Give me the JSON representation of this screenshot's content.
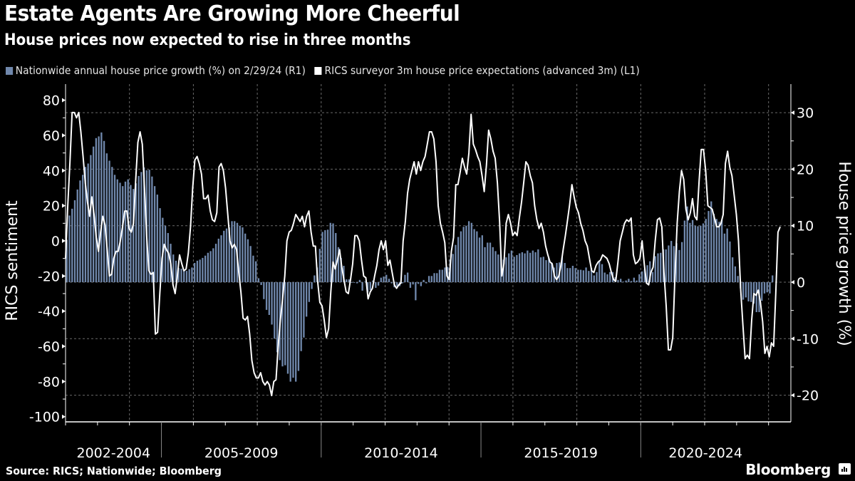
{
  "header": {
    "title": "Estate Agents Are Growing More Cheerful",
    "subtitle": "House prices now expected to rise in three months"
  },
  "footer": {
    "source": "Source: RICS; Nationwide; Bloomberg",
    "brand": "Bloomberg"
  },
  "colors": {
    "background": "#000000",
    "bars": "#7088ac",
    "line": "#ffffff",
    "grid": "#6a6a6a"
  },
  "chart_data": {
    "type": "bar+line",
    "title": "Estate Agents Are Growing More Cheerful",
    "subtitle": "House prices now expected to rise in three months",
    "legend_position": "top-left",
    "grid": true,
    "x_start": "2002-01",
    "x_range_years": [
      2002,
      2024.5
    ],
    "x_category_labels": [
      "2002-2004",
      "2005-2009",
      "2010-2014",
      "2015-2019",
      "2020-2024"
    ],
    "left_axis": {
      "label": "RICS sentiment",
      "ticks": [
        80,
        60,
        40,
        20,
        0,
        -20,
        -40,
        -60,
        -80,
        -100
      ],
      "range": [
        -104,
        87
      ]
    },
    "right_axis": {
      "label": "House price growth (%)",
      "ticks": [
        30,
        20,
        10,
        0,
        -10,
        -20
      ],
      "range": [
        -25,
        35
      ]
    },
    "series": [
      {
        "name": "Nationwide annual house price growth (%) on 2/29/24 (R1)",
        "type": "bar",
        "axis": "right",
        "frequency": "monthly",
        "start": "2002-01",
        "values": [
          7.5,
          11.8,
          13.0,
          14.5,
          16.4,
          18.0,
          19.0,
          20.4,
          21.0,
          22.5,
          24.0,
          25.5,
          25.8,
          26.5,
          25.0,
          22.8,
          21.5,
          20.4,
          19.0,
          18.2,
          17.6,
          17.0,
          17.8,
          18.2,
          17.2,
          16.5,
          17.5,
          18.8,
          19.5,
          20.3,
          19.8,
          19.9,
          18.7,
          17.0,
          15.5,
          13.1,
          11.4,
          10.0,
          8.7,
          6.8,
          4.9,
          3.8,
          2.5,
          2.4,
          2.2,
          2.0,
          2.3,
          2.6,
          3.4,
          3.8,
          4.0,
          4.3,
          4.7,
          5.2,
          5.5,
          6.0,
          6.8,
          7.7,
          8.3,
          9.1,
          9.5,
          9.7,
          10.8,
          10.8,
          10.5,
          10.0,
          9.7,
          8.6,
          7.6,
          6.4,
          4.7,
          3.7,
          0.7,
          -0.5,
          -3.0,
          -4.9,
          -5.8,
          -7.5,
          -10.0,
          -12.4,
          -13.8,
          -14.9,
          -14.7,
          -16.2,
          -17.6,
          -16.9,
          -17.6,
          -15.7,
          -12.2,
          -9.8,
          -6.1,
          -3.5,
          -1.2,
          1.2,
          2.6,
          5.9,
          8.9,
          9.2,
          9.3,
          10.5,
          10.4,
          8.7,
          6.2,
          4.3,
          2.9,
          0.5,
          0.5,
          0.0,
          0.0,
          -0.2,
          0.4,
          -1.5,
          0.1,
          -1.8,
          -1.4,
          0.3,
          -1.0,
          -0.6,
          0.8,
          1.0,
          1.3,
          0.6,
          -0.2,
          -0.9,
          -0.7,
          -0.7,
          -0.2,
          1.3,
          1.7,
          -1.0,
          -0.4,
          -3.2,
          -0.3,
          -0.7,
          0.4,
          -0.2,
          1.1,
          1.1,
          1.6,
          1.6,
          2.2,
          2.2,
          2.6,
          2.7,
          4.0,
          5.0,
          6.6,
          8.0,
          9.0,
          9.8,
          10.0,
          10.8,
          10.5,
          9.4,
          9.0,
          7.9,
          8.3,
          6.2,
          7.0,
          7.0,
          6.2,
          5.5,
          4.9,
          4.9,
          4.0,
          4.4,
          5.1,
          5.6,
          4.5,
          4.8,
          5.1,
          5.3,
          5.1,
          5.6,
          5.2,
          5.6,
          5.3,
          5.8,
          4.4,
          4.5,
          3.9,
          4.3,
          3.5,
          2.6,
          3.4,
          3.5,
          4.4,
          3.4,
          2.5,
          2.5,
          2.9,
          2.5,
          2.2,
          2.2,
          2.1,
          2.6,
          2.0,
          2.5,
          1.2,
          1.8,
          3.8,
          3.2,
          1.7,
          1.4,
          1.8,
          1.8,
          0.9,
          0.4,
          0.6,
          0.1,
          0.3,
          0.6,
          0.2,
          0.8,
          0.3,
          1.4,
          1.9,
          2.3,
          3.0,
          3.7,
          1.8,
          4.6,
          5.1,
          5.2,
          5.8,
          5.8,
          6.5,
          7.3,
          6.4,
          6.9,
          5.7,
          7.1,
          10.9,
          13.4,
          10.5,
          11.0,
          10.0,
          9.9,
          10.0,
          10.4,
          11.2,
          12.6,
          14.3,
          12.1,
          11.2,
          10.7,
          11.0,
          8.6,
          9.5,
          7.2,
          4.4,
          2.8,
          1.1,
          -1.1,
          -3.1,
          -2.7,
          -3.4,
          -3.5,
          -3.8,
          -5.3,
          -5.3,
          -3.3,
          -2.0,
          -1.8,
          -2.0,
          1.2
        ]
      },
      {
        "name": "RICS surveyor 3m house price expectations (advanced 3m) (L1)",
        "type": "line",
        "axis": "left",
        "frequency": "monthly",
        "start": "2002-01",
        "values": [
          -10,
          20,
          45,
          73,
          73,
          70,
          73,
          62,
          48,
          33,
          22,
          14,
          25,
          15,
          2,
          -6,
          5,
          14,
          9,
          -5,
          -20,
          -19,
          -10,
          -6,
          -6,
          0,
          8,
          17,
          17,
          7,
          5,
          10,
          35,
          56,
          62,
          55,
          30,
          3,
          -17,
          -19,
          -18,
          -53,
          -52,
          -30,
          -10,
          -2,
          -5,
          -7,
          -13,
          -25,
          -30,
          -20,
          -8,
          -13,
          -17,
          -16,
          -7,
          8,
          30,
          46,
          48,
          44,
          38,
          24,
          24,
          26,
          17,
          12,
          11,
          16,
          42,
          44,
          40,
          30,
          15,
          0,
          -4,
          -2,
          -5,
          -18,
          -29,
          -44,
          -45,
          -43,
          -53,
          -68,
          -75,
          -78,
          -78,
          -75,
          -80,
          -82,
          -80,
          -82,
          -88,
          -80,
          -79,
          -60,
          -45,
          -33,
          -20,
          0,
          5,
          6,
          10,
          15,
          13,
          11,
          14,
          8,
          14,
          17,
          5,
          -3,
          -3,
          -23,
          -35,
          -37,
          -45,
          -55,
          -50,
          -29,
          -12,
          -16,
          -11,
          -5,
          -15,
          -22,
          -29,
          -30,
          -22,
          -13,
          3,
          3,
          0,
          -11,
          -20,
          -21,
          -33,
          -29,
          -27,
          -20,
          -14,
          -5,
          0,
          -5,
          0,
          -14,
          -11,
          -18,
          -25,
          -27,
          -25,
          -24,
          0,
          11,
          27,
          35,
          40,
          45,
          38,
          45,
          40,
          45,
          48,
          55,
          62,
          62,
          58,
          45,
          20,
          10,
          5,
          -1,
          -20,
          -22,
          -6,
          2,
          32,
          32,
          39,
          47,
          42,
          38,
          50,
          72,
          55,
          52,
          48,
          45,
          37,
          28,
          43,
          63,
          58,
          51,
          47,
          33,
          11,
          -20,
          -13,
          10,
          15,
          10,
          3,
          5,
          3,
          13,
          22,
          33,
          45,
          43,
          37,
          33,
          20,
          12,
          7,
          10,
          5,
          -3,
          -8,
          -12,
          -13,
          -20,
          -22,
          -20,
          -14,
          -5,
          3,
          12,
          21,
          32,
          25,
          19,
          16,
          10,
          6,
          0,
          -3,
          -10,
          -17,
          -18,
          -14,
          -12,
          -11,
          -8,
          -9,
          -10,
          -13,
          -18,
          -22,
          -23,
          -12,
          0,
          5,
          10,
          12,
          11,
          13,
          -8,
          -13,
          -12,
          -10,
          0,
          -13,
          -24,
          -25,
          -18,
          -15,
          0,
          12,
          13,
          8,
          -18,
          -37,
          -62,
          -62,
          -55,
          -20,
          10,
          28,
          40,
          35,
          18,
          12,
          16,
          24,
          14,
          12,
          34,
          52,
          52,
          40,
          20,
          19,
          18,
          13,
          8,
          8,
          10,
          15,
          44,
          51,
          42,
          37,
          26,
          15,
          0,
          -28,
          -48,
          -67,
          -65,
          -67,
          -45,
          -30,
          -31,
          -28,
          -35,
          -46,
          -64,
          -60,
          -66,
          -58,
          -60,
          -30,
          5,
          8
        ]
      }
    ]
  }
}
